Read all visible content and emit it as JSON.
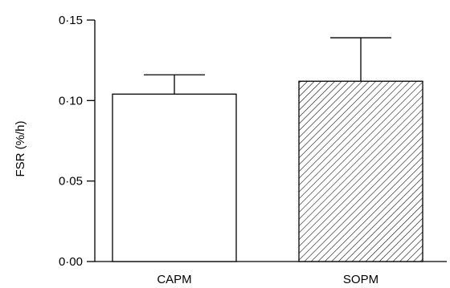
{
  "chart_data": {
    "type": "bar",
    "title": "",
    "xlabel": "",
    "ylabel": "FSR (%/h)",
    "ylim": [
      0,
      0.15
    ],
    "yticks": [
      0.0,
      0.05,
      0.1,
      0.15
    ],
    "ytick_labels": [
      "0·00",
      "0·05",
      "0·10",
      "0·15"
    ],
    "categories": [
      "CAPM",
      "SOPM"
    ],
    "values": [
      0.104,
      0.112
    ],
    "errors": [
      0.012,
      0.027
    ],
    "bar_fills": [
      "white",
      "diagonal-hatch"
    ],
    "grid": false
  }
}
